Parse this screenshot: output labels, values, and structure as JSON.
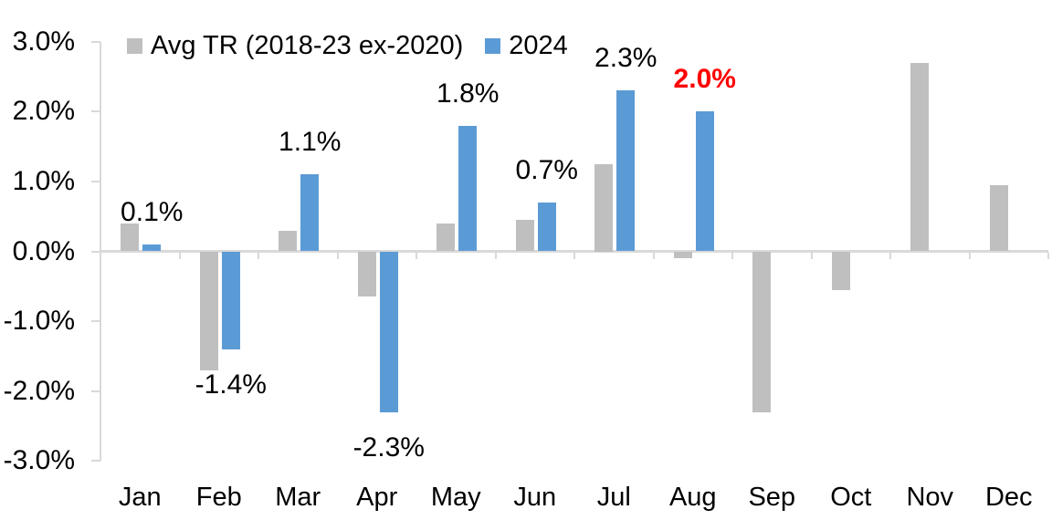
{
  "chart_data": {
    "type": "bar",
    "title": "",
    "xlabel": "",
    "ylabel": "",
    "categories": [
      "Jan",
      "Feb",
      "Mar",
      "Apr",
      "May",
      "Jun",
      "Jul",
      "Aug",
      "Sep",
      "Oct",
      "Nov",
      "Dec"
    ],
    "series": [
      {
        "name": "Avg TR (2018-23 ex-2020)",
        "color": "#bfbfbf",
        "values": [
          0.4,
          -1.7,
          0.3,
          -0.65,
          0.4,
          0.45,
          1.25,
          -0.1,
          -2.3,
          -0.55,
          2.7,
          0.95
        ]
      },
      {
        "name": "2024",
        "color": "#5b9bd5",
        "values": [
          0.1,
          -1.4,
          1.1,
          -2.3,
          1.8,
          0.7,
          2.3,
          2.0
        ],
        "data_labels": [
          "0.1%",
          "-1.4%",
          "1.1%",
          "-2.3%",
          "1.8%",
          "0.7%",
          "2.3%",
          "2.0%"
        ],
        "highlight": {
          "index": 7,
          "color": "#ff0000",
          "bold": true
        }
      }
    ],
    "ylim": [
      -3,
      3
    ],
    "y_tick_labels": [
      "3.0%",
      "2.0%",
      "1.0%",
      "0.0%",
      "-1.0%",
      "-2.0%",
      "-3.0%"
    ],
    "grid": false,
    "legend_position": "top",
    "axis_color": "#d9d9d9",
    "text_color": "#000000"
  }
}
